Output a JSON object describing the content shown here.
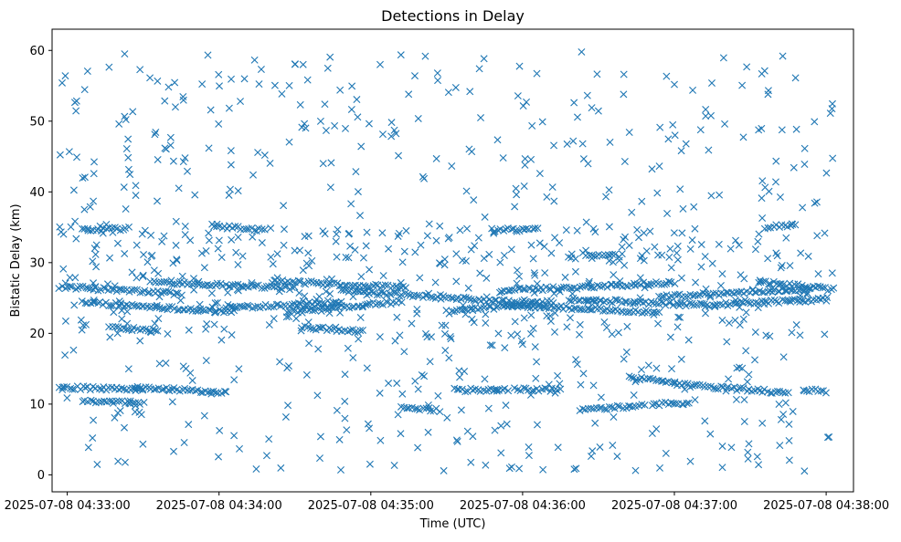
{
  "chart_data": {
    "type": "scatter",
    "title": "Detections in Delay",
    "xlabel": "Time (UTC)",
    "ylabel": "Bistatic Delay (km)",
    "marker": "x",
    "color": "#1f77b4",
    "x_unit": "minutes after 2025-07-08 04:33:00 UTC",
    "xlim": [
      -0.1,
      5.18
    ],
    "ylim": [
      -2.4,
      63.0
    ],
    "x_ticks": [
      0,
      1,
      2,
      3,
      4,
      5
    ],
    "x_tick_labels": [
      "2025-07-08 04:33:00",
      "2025-07-08 04:34:00",
      "2025-07-08 04:35:00",
      "2025-07-08 04:36:00",
      "2025-07-08 04:37:00",
      "2025-07-08 04:38:00"
    ],
    "y_ticks": [
      0,
      10,
      20,
      30,
      40,
      50,
      60
    ],
    "y_tick_labels": [
      "0",
      "10",
      "20",
      "30",
      "40",
      "50",
      "60"
    ],
    "series": [
      {
        "name": "detections",
        "description": "Dense horizontal clusters (tracks) plus scattered clutter points",
        "tracks": [
          {
            "x_start": -0.05,
            "x_end": 0.75,
            "y_start": 26.6,
            "y_end": 25.6
          },
          {
            "x_start": 0.1,
            "x_end": 1.1,
            "y_start": 24.4,
            "y_end": 23.0
          },
          {
            "x_start": 0.55,
            "x_end": 1.5,
            "y_start": 27.3,
            "y_end": 26.4
          },
          {
            "x_start": 1.05,
            "x_end": 1.8,
            "y_start": 23.6,
            "y_end": 24.5
          },
          {
            "x_start": 1.35,
            "x_end": 2.2,
            "y_start": 27.4,
            "y_end": 26.5
          },
          {
            "x_start": 1.8,
            "x_end": 3.1,
            "y_start": 26.0,
            "y_end": 24.2
          },
          {
            "x_start": 1.45,
            "x_end": 2.2,
            "y_start": 23.0,
            "y_end": 24.5
          },
          {
            "x_start": 2.5,
            "x_end": 3.2,
            "y_start": 23.0,
            "y_end": 24.5
          },
          {
            "x_start": 2.85,
            "x_end": 4.0,
            "y_start": 26.0,
            "y_end": 27.2
          },
          {
            "x_start": 2.9,
            "x_end": 3.9,
            "y_start": 24.0,
            "y_end": 23.0
          },
          {
            "x_start": 3.3,
            "x_end": 4.2,
            "y_start": 24.8,
            "y_end": 24.0
          },
          {
            "x_start": 3.9,
            "x_end": 4.9,
            "y_start": 25.2,
            "y_end": 26.3
          },
          {
            "x_start": 4.2,
            "x_end": 5.0,
            "y_start": 24.0,
            "y_end": 24.8
          },
          {
            "x_start": 4.55,
            "x_end": 5.05,
            "y_start": 27.3,
            "y_end": 26.2
          },
          {
            "x_start": 0.3,
            "x_end": 0.6,
            "y_start": 20.7,
            "y_end": 20.5
          },
          {
            "x_start": 1.55,
            "x_end": 1.95,
            "y_start": 20.8,
            "y_end": 20.3
          },
          {
            "x_start": 0.1,
            "x_end": 0.4,
            "y_start": 34.6,
            "y_end": 34.8
          },
          {
            "x_start": 0.95,
            "x_end": 1.3,
            "y_start": 35.2,
            "y_end": 34.6
          },
          {
            "x_start": 2.8,
            "x_end": 3.1,
            "y_start": 34.6,
            "y_end": 34.8
          },
          {
            "x_start": 3.4,
            "x_end": 3.65,
            "y_start": 31.2,
            "y_end": 31.0
          },
          {
            "x_start": 4.6,
            "x_end": 4.8,
            "y_start": 35.0,
            "y_end": 35.4
          },
          {
            "x_start": -0.05,
            "x_end": 0.5,
            "y_start": 12.4,
            "y_end": 12.0
          },
          {
            "x_start": 0.45,
            "x_end": 1.05,
            "y_start": 12.4,
            "y_end": 11.6
          },
          {
            "x_start": 0.1,
            "x_end": 0.5,
            "y_start": 10.3,
            "y_end": 10.2
          },
          {
            "x_start": 2.2,
            "x_end": 2.45,
            "y_start": 9.7,
            "y_end": 9.1
          },
          {
            "x_start": 2.55,
            "x_end": 2.9,
            "y_start": 12.0,
            "y_end": 12.0
          },
          {
            "x_start": 2.95,
            "x_end": 3.25,
            "y_start": 12.1,
            "y_end": 12.0
          },
          {
            "x_start": 3.4,
            "x_end": 3.8,
            "y_start": 9.2,
            "y_end": 9.8
          },
          {
            "x_start": 3.7,
            "x_end": 4.0,
            "y_start": 13.8,
            "y_end": 13.2
          },
          {
            "x_start": 3.85,
            "x_end": 4.1,
            "y_start": 10.0,
            "y_end": 10.1
          },
          {
            "x_start": 4.0,
            "x_end": 4.75,
            "y_start": 12.8,
            "y_end": 11.6
          },
          {
            "x_start": 4.85,
            "x_end": 5.0,
            "y_start": 12.0,
            "y_end": 11.8
          }
        ],
        "clutter_range": {
          "x": [
            -0.05,
            5.05
          ],
          "y": [
            0.5,
            60.0
          ]
        }
      }
    ]
  }
}
